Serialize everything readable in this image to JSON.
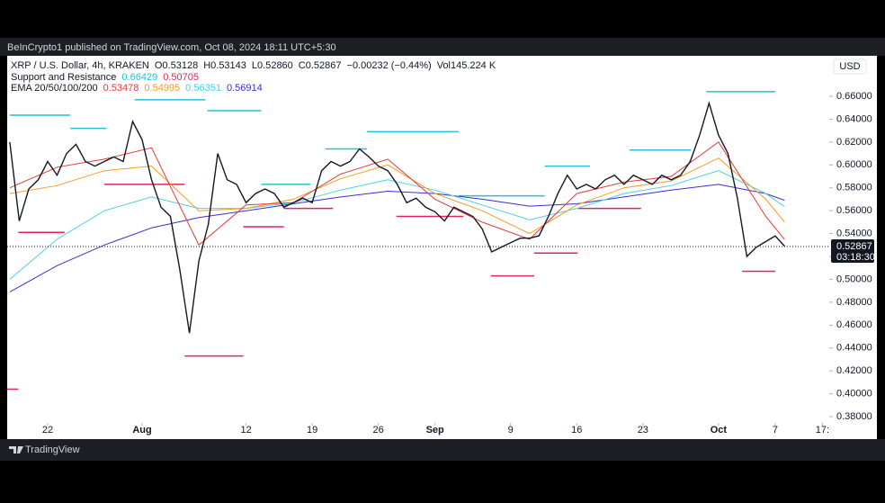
{
  "published": "BeInCrypto1 published on TradingView.com, Oct 08, 2024 18:11 UTC+5:30",
  "brand": "TradingView",
  "chart_data": {
    "type": "line",
    "header": {
      "symbol": "XRP / U.S. Dollar, 4h, KRAKEN",
      "ohlc": [
        {
          "key": "O",
          "value": "0.53128"
        },
        {
          "key": "H",
          "value": "0.53143"
        },
        {
          "key": "L",
          "value": "0.52860"
        },
        {
          "key": "C",
          "value": "0.52867"
        },
        {
          "key": "",
          "value": "−0.00232 (−0.44%)"
        },
        {
          "key": "Vol",
          "value": "145.224 K"
        }
      ],
      "indicators": [
        {
          "name": "Support and Resistance",
          "values": [
            {
              "text": "0.66429",
              "color": "#22c1d6"
            },
            {
              "text": "0.50705",
              "color": "#e0245e"
            }
          ]
        },
        {
          "name": "EMA 20/50/100/200",
          "values": [
            {
              "text": "0.53478",
              "color": "#e53935"
            },
            {
              "text": "0.54995",
              "color": "#f59b23"
            },
            {
              "text": "0.56351",
              "color": "#4dd0e1"
            },
            {
              "text": "0.56914",
              "color": "#3a2fd1"
            }
          ]
        }
      ]
    },
    "currency": "USD",
    "last_price": {
      "value": 0.52867,
      "label": "0.52867",
      "countdown": "03:18:30"
    },
    "xlim": [
      199.72,
      286.72
    ],
    "ylim": [
      0.3745,
      0.6954
    ],
    "grid": false,
    "xticks": [
      {
        "value": 204,
        "label": "22"
      },
      {
        "value": 214,
        "label": "Aug"
      },
      {
        "value": 225,
        "label": "12"
      },
      {
        "value": 232,
        "label": "19"
      },
      {
        "value": 239,
        "label": "26"
      },
      {
        "value": 245,
        "label": "Sep"
      },
      {
        "value": 253,
        "label": "9"
      },
      {
        "value": 260,
        "label": "16"
      },
      {
        "value": 267,
        "label": "23"
      },
      {
        "value": 275,
        "label": "Oct"
      },
      {
        "value": 281,
        "label": "7"
      },
      {
        "value": 286,
        "label": "17:"
      }
    ],
    "yticks": [
      {
        "value": 0.38,
        "label": "0.38000"
      },
      {
        "value": 0.4,
        "label": "0.40000"
      },
      {
        "value": 0.42,
        "label": "0.42000"
      },
      {
        "value": 0.44,
        "label": "0.44000"
      },
      {
        "value": 0.46,
        "label": "0.46000"
      },
      {
        "value": 0.48,
        "label": "0.48000"
      },
      {
        "value": 0.5,
        "label": "0.50000"
      },
      {
        "value": 0.52,
        "label": "0.52000"
      },
      {
        "value": 0.54,
        "label": "0.54000"
      },
      {
        "value": 0.56,
        "label": "0.56000"
      },
      {
        "value": 0.58,
        "label": "0.58000"
      },
      {
        "value": 0.6,
        "label": "0.60000"
      },
      {
        "value": 0.62,
        "label": "0.62000"
      },
      {
        "value": 0.64,
        "label": "0.64000"
      },
      {
        "value": 0.66,
        "label": "0.66000"
      }
    ],
    "series": [
      {
        "color": "#3a2fd1",
        "x": [
          200,
          205,
          210,
          215,
          220,
          225,
          230,
          235,
          240,
          245,
          250,
          255,
          260,
          265,
          270,
          275,
          280,
          282
        ],
        "values": [
          0.489,
          0.512,
          0.53,
          0.545,
          0.554,
          0.56,
          0.566,
          0.572,
          0.577,
          0.575,
          0.57,
          0.564,
          0.566,
          0.572,
          0.578,
          0.583,
          0.575,
          0.5691
        ]
      },
      {
        "color": "#4dd0e1",
        "x": [
          200,
          205,
          210,
          215,
          220,
          225,
          230,
          235,
          240,
          245,
          250,
          255,
          260,
          265,
          270,
          275,
          280,
          282
        ],
        "values": [
          0.5,
          0.535,
          0.56,
          0.572,
          0.562,
          0.562,
          0.567,
          0.578,
          0.587,
          0.578,
          0.565,
          0.552,
          0.562,
          0.575,
          0.582,
          0.595,
          0.575,
          0.5635
        ]
      },
      {
        "color": "#f59b23",
        "x": [
          200,
          205,
          210,
          215,
          220,
          225,
          230,
          235,
          240,
          245,
          250,
          255,
          260,
          265,
          270,
          275,
          280,
          282
        ],
        "values": [
          0.575,
          0.582,
          0.595,
          0.599,
          0.56,
          0.562,
          0.57,
          0.588,
          0.6,
          0.575,
          0.56,
          0.54,
          0.565,
          0.58,
          0.586,
          0.606,
          0.57,
          0.55
        ]
      },
      {
        "color": "#e53935",
        "x": [
          200,
          205,
          210,
          215,
          220,
          225,
          230,
          235,
          240,
          245,
          250,
          255,
          260,
          265,
          270,
          275,
          280,
          282
        ],
        "values": [
          0.58,
          0.598,
          0.605,
          0.615,
          0.53,
          0.565,
          0.567,
          0.592,
          0.605,
          0.57,
          0.55,
          0.535,
          0.575,
          0.585,
          0.59,
          0.62,
          0.555,
          0.5348
        ]
      },
      {
        "color": "#131722",
        "x": [
          200,
          201,
          202,
          203,
          204,
          205,
          206,
          207,
          208,
          209,
          210,
          211,
          212,
          213,
          214,
          215,
          216,
          217,
          218,
          219,
          220,
          221,
          222,
          223,
          224,
          225,
          226,
          227,
          228,
          229,
          230,
          231,
          232,
          233,
          234,
          235,
          236,
          237,
          238,
          239,
          240,
          241,
          242,
          243,
          244,
          245,
          246,
          247,
          248,
          249,
          250,
          251,
          252,
          253,
          254,
          255,
          256,
          257,
          258,
          259,
          260,
          261,
          262,
          263,
          264,
          265,
          266,
          267,
          268,
          269,
          270,
          271,
          272,
          273,
          274,
          275,
          276,
          277,
          278,
          279,
          280,
          281,
          282
        ],
        "values": [
          0.62,
          0.551,
          0.579,
          0.587,
          0.603,
          0.591,
          0.61,
          0.618,
          0.603,
          0.599,
          0.603,
          0.607,
          0.603,
          0.638,
          0.622,
          0.587,
          0.563,
          0.555,
          0.508,
          0.453,
          0.516,
          0.548,
          0.61,
          0.587,
          0.583,
          0.567,
          0.575,
          0.579,
          0.575,
          0.563,
          0.567,
          0.571,
          0.567,
          0.595,
          0.603,
          0.599,
          0.603,
          0.614,
          0.607,
          0.599,
          0.595,
          0.583,
          0.567,
          0.571,
          0.563,
          0.559,
          0.551,
          0.563,
          0.559,
          0.555,
          0.544,
          0.524,
          0.528,
          0.532,
          0.536,
          0.536,
          0.538,
          0.555,
          0.575,
          0.591,
          0.579,
          0.583,
          0.579,
          0.587,
          0.591,
          0.583,
          0.591,
          0.587,
          0.583,
          0.591,
          0.587,
          0.591,
          0.603,
          0.626,
          0.654,
          0.626,
          0.61,
          0.571,
          0.52,
          0.528,
          0.533,
          0.538,
          0.529
        ]
      }
    ],
    "resistance": {
      "color": "#22c1d6",
      "segments": [
        {
          "x": [
            200,
            206.4
          ],
          "value": 0.6435
        },
        {
          "x": [
            206.4,
            210.2
          ],
          "value": 0.632
        },
        {
          "x": [
            213.2,
            220.7
          ],
          "value": 0.657
        },
        {
          "x": [
            220.9,
            226.6
          ],
          "value": 0.6474
        },
        {
          "x": [
            226.6,
            231.8
          ],
          "value": 0.583
        },
        {
          "x": [
            233.4,
            237.8
          ],
          "value": 0.614
        },
        {
          "x": [
            237.8,
            247.5
          ],
          "value": 0.629
        },
        {
          "x": [
            247.5,
            256.6
          ],
          "value": 0.573
        },
        {
          "x": [
            256.6,
            261.4
          ],
          "value": 0.599
        },
        {
          "x": [
            265.6,
            272.1
          ],
          "value": 0.613
        },
        {
          "x": [
            273.7,
            281
          ],
          "value": 0.664
        }
      ]
    },
    "support": {
      "color": "#e0245e",
      "segments": [
        {
          "x": [
            199.7,
            200.9
          ],
          "value": 0.404
        },
        {
          "x": [
            200.9,
            205.8
          ],
          "value": 0.541
        },
        {
          "x": [
            210,
            218.5
          ],
          "value": 0.583
        },
        {
          "x": [
            218.5,
            224.7
          ],
          "value": 0.433
        },
        {
          "x": [
            224.7,
            229
          ],
          "value": 0.546
        },
        {
          "x": [
            229,
            234.2
          ],
          "value": 0.562
        },
        {
          "x": [
            240.9,
            248
          ],
          "value": 0.555
        },
        {
          "x": [
            250.9,
            255.5
          ],
          "value": 0.503
        },
        {
          "x": [
            255.5,
            260.1
          ],
          "value": 0.523
        },
        {
          "x": [
            260.1,
            266.8
          ],
          "value": 0.562
        },
        {
          "x": [
            277.5,
            281
          ],
          "value": 0.507
        }
      ]
    }
  }
}
